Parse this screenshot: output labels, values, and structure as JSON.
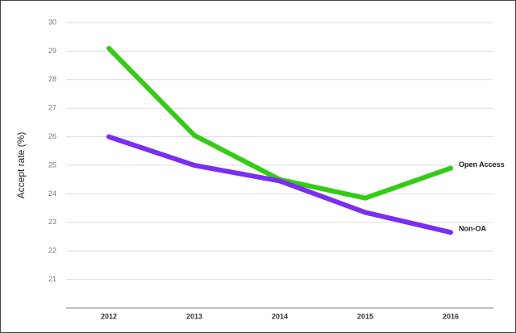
{
  "chart_data": {
    "type": "line",
    "y_label": "Accept rate (%)",
    "categories": [
      "2012",
      "2013",
      "2014",
      "2015",
      "2016"
    ],
    "series": [
      {
        "name": "Open Access",
        "color": "#33cc14",
        "values": [
          29.1,
          26.05,
          24.5,
          23.85,
          24.9
        ]
      },
      {
        "name": "Non-OA",
        "color": "#7a2ef2",
        "values": [
          26.0,
          25.0,
          24.45,
          23.35,
          22.65
        ]
      }
    ],
    "ylim": [
      20,
      30
    ],
    "yticks": [
      21,
      22,
      23,
      24,
      25,
      26,
      27,
      28,
      29,
      30
    ],
    "grid": true
  }
}
